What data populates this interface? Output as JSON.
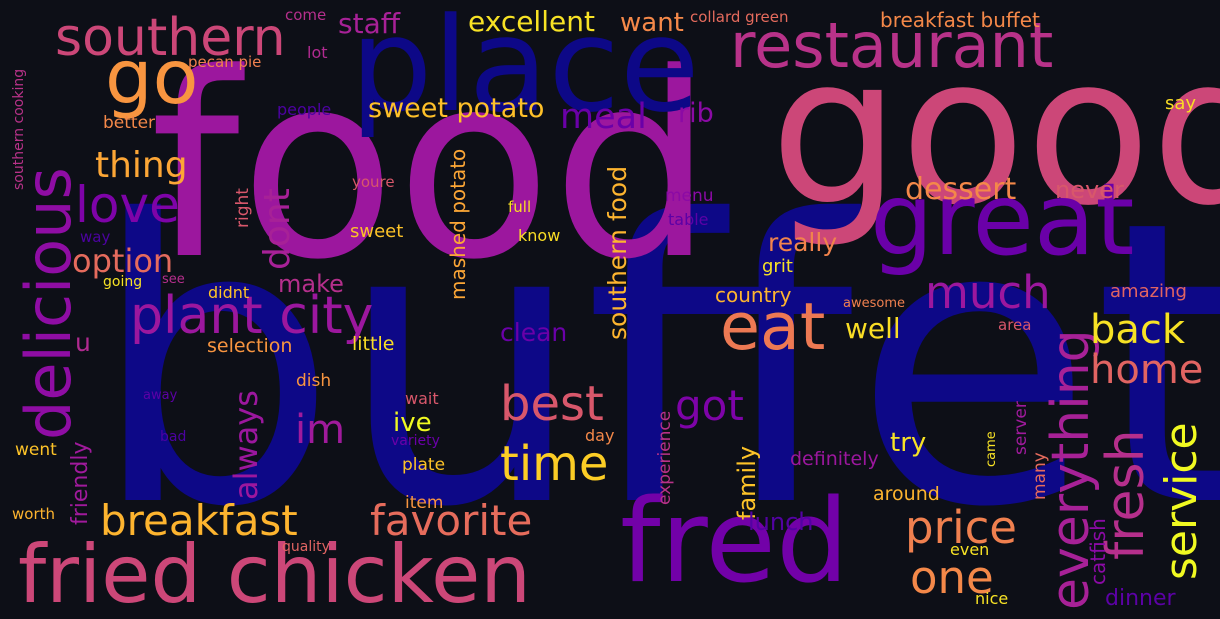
{
  "words": [
    {
      "text": "buffet",
      "color": "#0d0887"
    },
    {
      "text": "food",
      "color": "#9c179e"
    },
    {
      "text": "good",
      "color": "#cc4778"
    },
    {
      "text": "place",
      "color": "#0d0887"
    },
    {
      "text": "great",
      "color": "#6a00a8"
    },
    {
      "text": "restaurant",
      "color": "#b83289"
    },
    {
      "text": "fred",
      "color": "#7201a8"
    },
    {
      "text": "fried chicken",
      "color": "#cc4778"
    },
    {
      "text": "southern",
      "color": "#cc4778"
    },
    {
      "text": "plant city",
      "color": "#9c179e"
    },
    {
      "text": "delicious",
      "color": "#8f0da4"
    },
    {
      "text": "eat",
      "color": "#ed7953"
    },
    {
      "text": "love",
      "color": "#7e03a8"
    },
    {
      "text": "go",
      "color": "#f89540"
    },
    {
      "text": "breakfast",
      "color": "#fdb42f"
    },
    {
      "text": "favorite",
      "color": "#e66c5c"
    },
    {
      "text": "time",
      "color": "#fccd25"
    },
    {
      "text": "best",
      "color": "#d8576b"
    },
    {
      "text": "price",
      "color": "#f0804f"
    },
    {
      "text": "everything",
      "color": "#a72197"
    },
    {
      "text": "fresh",
      "color": "#b52f8c"
    },
    {
      "text": "service",
      "color": "#f0f921"
    },
    {
      "text": "back",
      "color": "#f7e225"
    },
    {
      "text": "home",
      "color": "#e16462"
    },
    {
      "text": "much",
      "color": "#9c179e"
    },
    {
      "text": "one",
      "color": "#f48849"
    },
    {
      "text": "im",
      "color": "#a01a9c"
    },
    {
      "text": "got",
      "color": "#7e03a8"
    },
    {
      "text": "dont",
      "color": "#a72197"
    },
    {
      "text": "option",
      "color": "#e56b5d"
    },
    {
      "text": "thing",
      "color": "#fca636"
    },
    {
      "text": "always",
      "color": "#9c179e"
    },
    {
      "text": "sweet potato",
      "color": "#fec029"
    },
    {
      "text": "meal",
      "color": "#6a00a8"
    },
    {
      "text": "rib",
      "color": "#8b0aa5"
    },
    {
      "text": "dessert",
      "color": "#f48849"
    },
    {
      "text": "staff",
      "color": "#a72197"
    },
    {
      "text": "excellent",
      "color": "#f7e225"
    },
    {
      "text": "want",
      "color": "#f48849"
    },
    {
      "text": "well",
      "color": "#f9dd25"
    },
    {
      "text": "southern food",
      "color": "#fdb42f"
    },
    {
      "text": "clean",
      "color": "#6a00a8"
    },
    {
      "text": "really",
      "color": "#f1834c"
    },
    {
      "text": "never",
      "color": "#d8576b"
    },
    {
      "text": "u",
      "color": "#b12a90"
    },
    {
      "text": "make",
      "color": "#b52f8c"
    },
    {
      "text": "try",
      "color": "#f7e225"
    },
    {
      "text": "ive",
      "color": "#f0f921"
    },
    {
      "text": "family",
      "color": "#fdc328"
    },
    {
      "text": "lunch",
      "color": "#5302a3"
    },
    {
      "text": "dinner",
      "color": "#5c01a6"
    },
    {
      "text": "catfish",
      "color": "#8b0aa5"
    },
    {
      "text": "mashed potato",
      "color": "#fca636"
    },
    {
      "text": "breakfast buffet",
      "color": "#f48849"
    },
    {
      "text": "country",
      "color": "#fdb42f"
    },
    {
      "text": "friendly",
      "color": "#a01a9c"
    },
    {
      "text": "grit",
      "color": "#f7e225"
    },
    {
      "text": "amazing",
      "color": "#e16462"
    },
    {
      "text": "definitely",
      "color": "#9c179e"
    },
    {
      "text": "around",
      "color": "#fdb42f"
    },
    {
      "text": "selection",
      "color": "#f89540"
    },
    {
      "text": "little",
      "color": "#f9dd25"
    },
    {
      "text": "many",
      "color": "#e56b5d"
    },
    {
      "text": "server",
      "color": "#a01a9c"
    },
    {
      "text": "experience",
      "color": "#b83289"
    },
    {
      "text": "right",
      "color": "#d8576b"
    },
    {
      "text": "menu",
      "color": "#8b0aa5"
    },
    {
      "text": "table",
      "color": "#5c01a6"
    },
    {
      "text": "full",
      "color": "#f9dd25"
    },
    {
      "text": "know",
      "color": "#f9dd25"
    },
    {
      "text": "sweet",
      "color": "#fdc328"
    },
    {
      "text": "youre",
      "color": "#d8576b"
    },
    {
      "text": "people",
      "color": "#4c02a1"
    },
    {
      "text": "better",
      "color": "#f48849"
    },
    {
      "text": "pecan pie",
      "color": "#f0804f"
    },
    {
      "text": "lot",
      "color": "#b12a90"
    },
    {
      "text": "come",
      "color": "#b52f8c"
    },
    {
      "text": "collard green",
      "color": "#e56b5d"
    },
    {
      "text": "say",
      "color": "#f9dd25"
    },
    {
      "text": "southern cooking",
      "color": "#b83289"
    },
    {
      "text": "way",
      "color": "#4c02a1"
    },
    {
      "text": "going",
      "color": "#f7e225"
    },
    {
      "text": "see",
      "color": "#b52f8c"
    },
    {
      "text": "didnt",
      "color": "#fdc328"
    },
    {
      "text": "dish",
      "color": "#f89540"
    },
    {
      "text": "wait",
      "color": "#d8576b"
    },
    {
      "text": "plate",
      "color": "#fdc328"
    },
    {
      "text": "variety",
      "color": "#6a00a8"
    },
    {
      "text": "day",
      "color": "#f48849"
    },
    {
      "text": "item",
      "color": "#f89540"
    },
    {
      "text": "went",
      "color": "#fdc328"
    },
    {
      "text": "away",
      "color": "#5c01a6"
    },
    {
      "text": "bad",
      "color": "#4c02a1"
    },
    {
      "text": "worth",
      "color": "#fdb42f"
    },
    {
      "text": "quality",
      "color": "#e16462"
    },
    {
      "text": "awesome",
      "color": "#f0804f"
    },
    {
      "text": "area",
      "color": "#d8576b"
    },
    {
      "text": "came",
      "color": "#f7e225"
    },
    {
      "text": "even",
      "color": "#f7e225"
    },
    {
      "text": "nice",
      "color": "#f7e225"
    }
  ]
}
